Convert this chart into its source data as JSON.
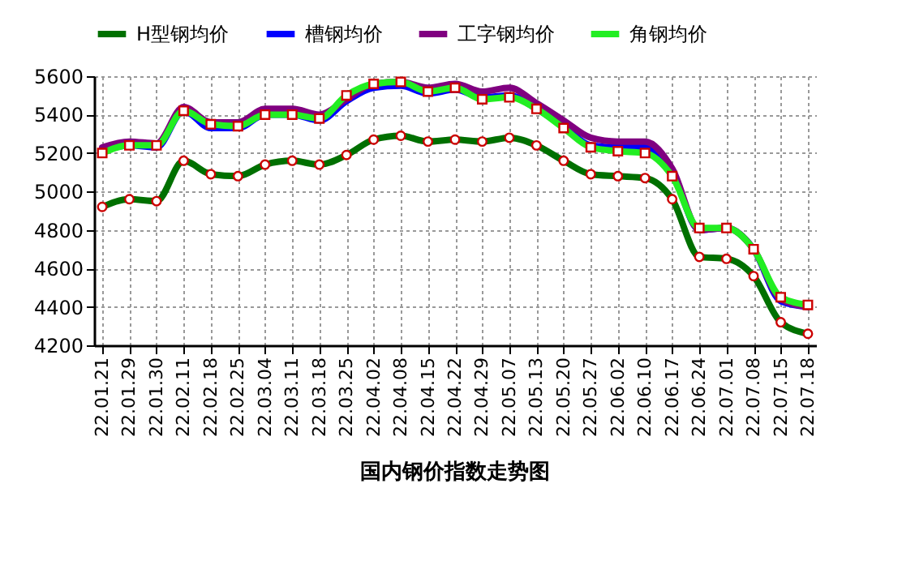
{
  "chart_data": {
    "type": "line",
    "title": "国内钢价指数走势图",
    "categories": [
      "22.01.21",
      "22.01.29",
      "22.01.30",
      "22.02.11",
      "22.02.18",
      "22.02.25",
      "22.03.04",
      "22.03.11",
      "22.03.18",
      "22.03.25",
      "22.04.02",
      "22.04.08",
      "22.04.15",
      "22.04.22",
      "22.04.29",
      "22.05.07",
      "22.05.13",
      "22.05.20",
      "22.05.27",
      "22.06.02",
      "22.06.10",
      "22.06.17",
      "22.06.24",
      "22.07.01",
      "22.07.08",
      "22.07.15",
      "22.07.18"
    ],
    "series": [
      {
        "name": "H型钢均价",
        "color": "#007000",
        "marker": "circle",
        "values": [
          4920,
          4960,
          4950,
          5160,
          5090,
          5080,
          5140,
          5160,
          5140,
          5190,
          5270,
          5290,
          5260,
          5270,
          5260,
          5280,
          5240,
          5160,
          5090,
          5080,
          5070,
          4960,
          4660,
          4650,
          4560,
          4320,
          4260
        ]
      },
      {
        "name": "槽钢均价",
        "color": "#0000ff",
        "marker": "none",
        "values": [
          5210,
          5240,
          5230,
          5420,
          5330,
          5330,
          5400,
          5400,
          5370,
          5470,
          5540,
          5550,
          5510,
          5530,
          5490,
          5500,
          5430,
          5340,
          5240,
          5230,
          5230,
          5100,
          4800,
          4810,
          4700,
          4430,
          4400
        ]
      },
      {
        "name": "工字钢均价",
        "color": "#800080",
        "marker": "none",
        "values": [
          5230,
          5260,
          5250,
          5440,
          5360,
          5360,
          5430,
          5430,
          5400,
          5480,
          5560,
          5570,
          5540,
          5560,
          5520,
          5540,
          5460,
          5370,
          5280,
          5260,
          5260,
          5120,
          4800,
          4810,
          4700,
          4440,
          4400
        ]
      },
      {
        "name": "角钢均价",
        "color": "#22ee22",
        "marker": "square",
        "values": [
          5200,
          5240,
          5240,
          5420,
          5350,
          5340,
          5400,
          5400,
          5380,
          5500,
          5560,
          5570,
          5520,
          5540,
          5480,
          5490,
          5430,
          5330,
          5230,
          5210,
          5200,
          5080,
          4810,
          4810,
          4700,
          4450,
          4410
        ]
      }
    ],
    "ylim": [
      4200,
      5600
    ],
    "yticks": [
      4200,
      4400,
      4600,
      4800,
      5000,
      5200,
      5400,
      5600
    ],
    "grid": true,
    "legend": "top",
    "line_style": "solid"
  }
}
